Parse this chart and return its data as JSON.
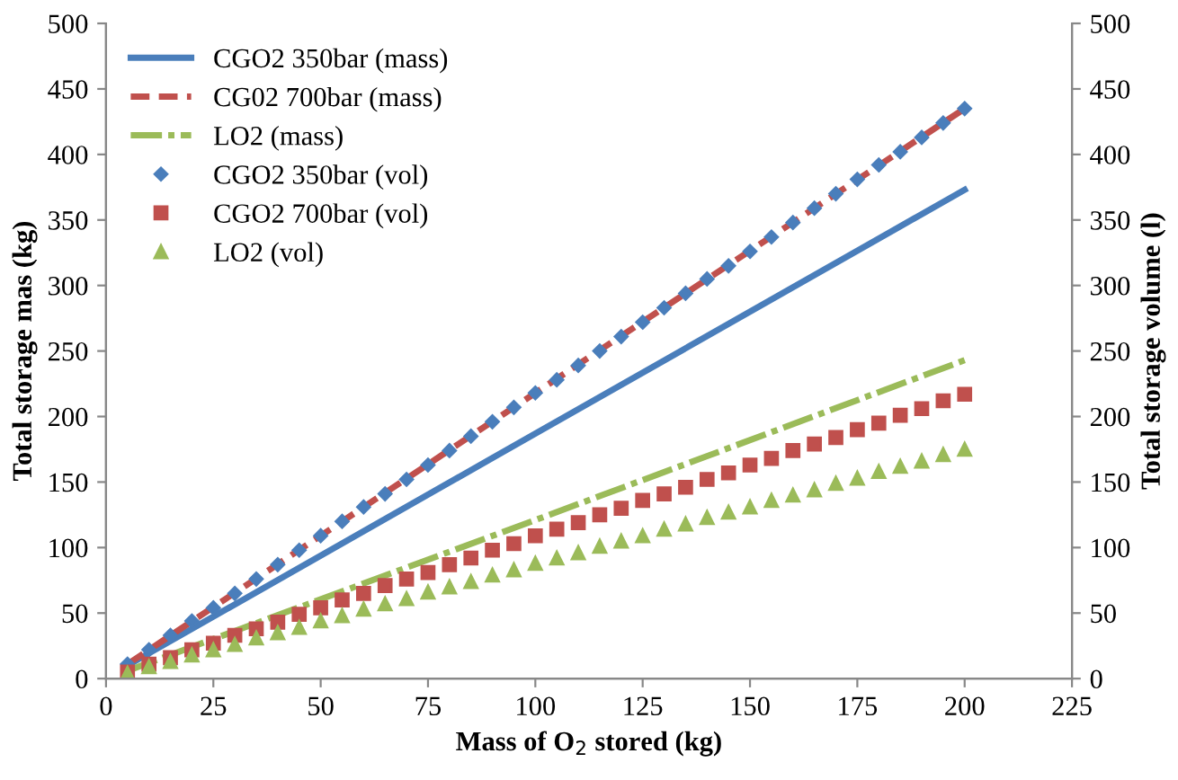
{
  "chart_data": {
    "type": "line",
    "xlabel": "Mass of O$_{2}$ stored (kg)",
    "ylabel": "Total storage mas (kg)",
    "y2label": "Total storage volume (l)",
    "xlim": [
      0,
      225
    ],
    "xticks": [
      0,
      25,
      50,
      75,
      100,
      125,
      150,
      175,
      200,
      225
    ],
    "ylim": [
      0,
      500
    ],
    "yticks": [
      0,
      50,
      100,
      150,
      200,
      250,
      300,
      350,
      400,
      450,
      500
    ],
    "y2lim": [
      0,
      500
    ],
    "y2ticks": [
      0,
      50,
      100,
      150,
      200,
      250,
      300,
      350,
      400,
      450,
      500
    ],
    "grid": false,
    "legend": "top left",
    "series": [
      {
        "name": "CGO2 350bar (mass)",
        "color": "#4a7ebb",
        "line_style": "solid",
        "marker": "none",
        "x": [
          5,
          100,
          200
        ],
        "values": [
          10,
          187,
          373
        ]
      },
      {
        "name": "CG02 700bar (mass)",
        "color": "#c0504d",
        "line_style": "dashed",
        "marker": "none",
        "x": [
          5,
          100,
          200
        ],
        "values": [
          11,
          218,
          435
        ]
      },
      {
        "name": "LO2 (mass)",
        "color": "#9bbb59",
        "line_style": "dashdot",
        "marker": "none",
        "x": [
          5,
          100,
          200
        ],
        "values": [
          6,
          121,
          243
        ]
      },
      {
        "name": "CGO2 350bar (vol)",
        "type": "scatter",
        "axis": "y2",
        "color": "#4a7ebb",
        "marker": "diamond",
        "x": [
          5,
          10,
          15,
          20,
          25,
          30,
          35,
          40,
          45,
          50,
          55,
          60,
          65,
          70,
          75,
          80,
          85,
          90,
          95,
          100,
          105,
          110,
          115,
          120,
          125,
          130,
          135,
          140,
          145,
          150,
          155,
          160,
          165,
          170,
          175,
          180,
          185,
          190,
          195,
          200
        ],
        "values": [
          11,
          22,
          33,
          44,
          54,
          65,
          76,
          87,
          98,
          109,
          120,
          131,
          141,
          152,
          163,
          174,
          185,
          196,
          207,
          218,
          228,
          239,
          250,
          261,
          272,
          283,
          294,
          305,
          315,
          326,
          337,
          348,
          359,
          370,
          381,
          392,
          402,
          413,
          424,
          435
        ]
      },
      {
        "name": "CGO2 700bar (vol)",
        "type": "scatter",
        "axis": "y2",
        "color": "#c0504d",
        "marker": "square",
        "x": [
          5,
          10,
          15,
          20,
          25,
          30,
          35,
          40,
          45,
          50,
          55,
          60,
          65,
          70,
          75,
          80,
          85,
          90,
          95,
          100,
          105,
          110,
          115,
          120,
          125,
          130,
          135,
          140,
          145,
          150,
          155,
          160,
          165,
          170,
          175,
          180,
          185,
          190,
          195,
          200
        ],
        "values": [
          5,
          11,
          16,
          22,
          27,
          33,
          38,
          43,
          49,
          54,
          60,
          65,
          71,
          76,
          81,
          87,
          92,
          98,
          103,
          109,
          114,
          119,
          125,
          130,
          136,
          141,
          146,
          152,
          157,
          163,
          168,
          174,
          179,
          184,
          190,
          195,
          201,
          206,
          212,
          217
        ]
      },
      {
        "name": "LO2 (vol)",
        "type": "scatter",
        "axis": "y2",
        "color": "#9bbb59",
        "marker": "triangle",
        "x": [
          5,
          10,
          15,
          20,
          25,
          30,
          35,
          40,
          45,
          50,
          55,
          60,
          65,
          70,
          75,
          80,
          85,
          90,
          95,
          100,
          105,
          110,
          115,
          120,
          125,
          130,
          135,
          140,
          145,
          150,
          155,
          160,
          165,
          170,
          175,
          180,
          185,
          190,
          195,
          200
        ],
        "values": [
          4,
          9,
          13,
          18,
          22,
          26,
          31,
          35,
          39,
          44,
          48,
          53,
          57,
          61,
          66,
          70,
          74,
          79,
          83,
          88,
          92,
          96,
          101,
          105,
          109,
          114,
          118,
          123,
          127,
          131,
          136,
          140,
          144,
          149,
          153,
          158,
          162,
          166,
          171,
          175
        ]
      }
    ]
  }
}
